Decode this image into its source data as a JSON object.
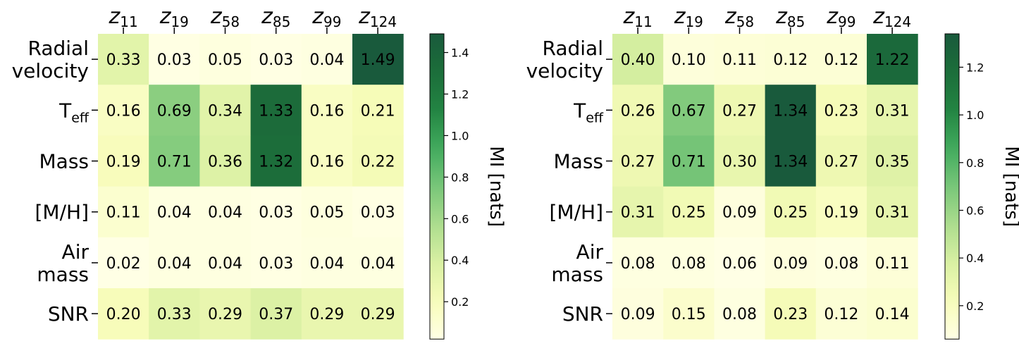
{
  "chart_data": [
    {
      "type": "heatmap",
      "columns": [
        {
          "base": "z",
          "sub": "11"
        },
        {
          "base": "z",
          "sub": "19"
        },
        {
          "base": "z",
          "sub": "58"
        },
        {
          "base": "z",
          "sub": "85"
        },
        {
          "base": "z",
          "sub": "99"
        },
        {
          "base": "z",
          "sub": "124"
        }
      ],
      "rows": [
        {
          "lines": [
            "Radial",
            "velocity"
          ]
        },
        {
          "lines": [
            "T"
          ],
          "sub": "eff"
        },
        {
          "lines": [
            "Mass"
          ]
        },
        {
          "lines": [
            "[M/H]"
          ]
        },
        {
          "lines": [
            "Air",
            "mass"
          ]
        },
        {
          "lines": [
            "SNR"
          ]
        }
      ],
      "values": [
        [
          0.33,
          0.03,
          0.05,
          0.03,
          0.04,
          1.49
        ],
        [
          0.16,
          0.69,
          0.34,
          1.33,
          0.16,
          0.21
        ],
        [
          0.19,
          0.71,
          0.36,
          1.32,
          0.16,
          0.22
        ],
        [
          0.11,
          0.04,
          0.04,
          0.03,
          0.05,
          0.03
        ],
        [
          0.02,
          0.04,
          0.04,
          0.03,
          0.04,
          0.04
        ],
        [
          0.2,
          0.33,
          0.29,
          0.37,
          0.29,
          0.29
        ]
      ],
      "vmin": 0.02,
      "vmax": 1.49,
      "colormap": "YlGn",
      "colorbar": {
        "label": "MI [nats]",
        "ticks": [
          0.2,
          0.4,
          0.6,
          0.8,
          1.0,
          1.2,
          1.4
        ],
        "tick_labels": [
          "0.2",
          "0.4",
          "0.6",
          "0.8",
          "1.0",
          "1.2",
          "1.4"
        ]
      }
    },
    {
      "type": "heatmap",
      "columns": [
        {
          "base": "z",
          "sub": "11"
        },
        {
          "base": "z",
          "sub": "19"
        },
        {
          "base": "z",
          "sub": "58"
        },
        {
          "base": "z",
          "sub": "85"
        },
        {
          "base": "z",
          "sub": "99"
        },
        {
          "base": "z",
          "sub": "124"
        }
      ],
      "rows": [
        {
          "lines": [
            "Radial",
            "velocity"
          ]
        },
        {
          "lines": [
            "T"
          ],
          "sub": "eff"
        },
        {
          "lines": [
            "Mass"
          ]
        },
        {
          "lines": [
            "[M/H]"
          ]
        },
        {
          "lines": [
            "Air",
            "mass"
          ]
        },
        {
          "lines": [
            "SNR"
          ]
        }
      ],
      "values": [
        [
          0.4,
          0.1,
          0.11,
          0.12,
          0.12,
          1.22
        ],
        [
          0.26,
          0.67,
          0.27,
          1.34,
          0.23,
          0.31
        ],
        [
          0.27,
          0.71,
          0.3,
          1.34,
          0.27,
          0.35
        ],
        [
          0.31,
          0.25,
          0.09,
          0.25,
          0.19,
          0.31
        ],
        [
          0.08,
          0.08,
          0.06,
          0.09,
          0.08,
          0.11
        ],
        [
          0.09,
          0.15,
          0.08,
          0.23,
          0.12,
          0.14
        ]
      ],
      "vmin": 0.06,
      "vmax": 1.34,
      "colormap": "YlGn",
      "colorbar": {
        "label": "MI [nats]",
        "ticks": [
          0.2,
          0.4,
          0.6,
          0.8,
          1.0,
          1.2
        ],
        "tick_labels": [
          "0.2",
          "0.4",
          "0.6",
          "0.8",
          "1.0",
          "1.2"
        ]
      }
    }
  ]
}
